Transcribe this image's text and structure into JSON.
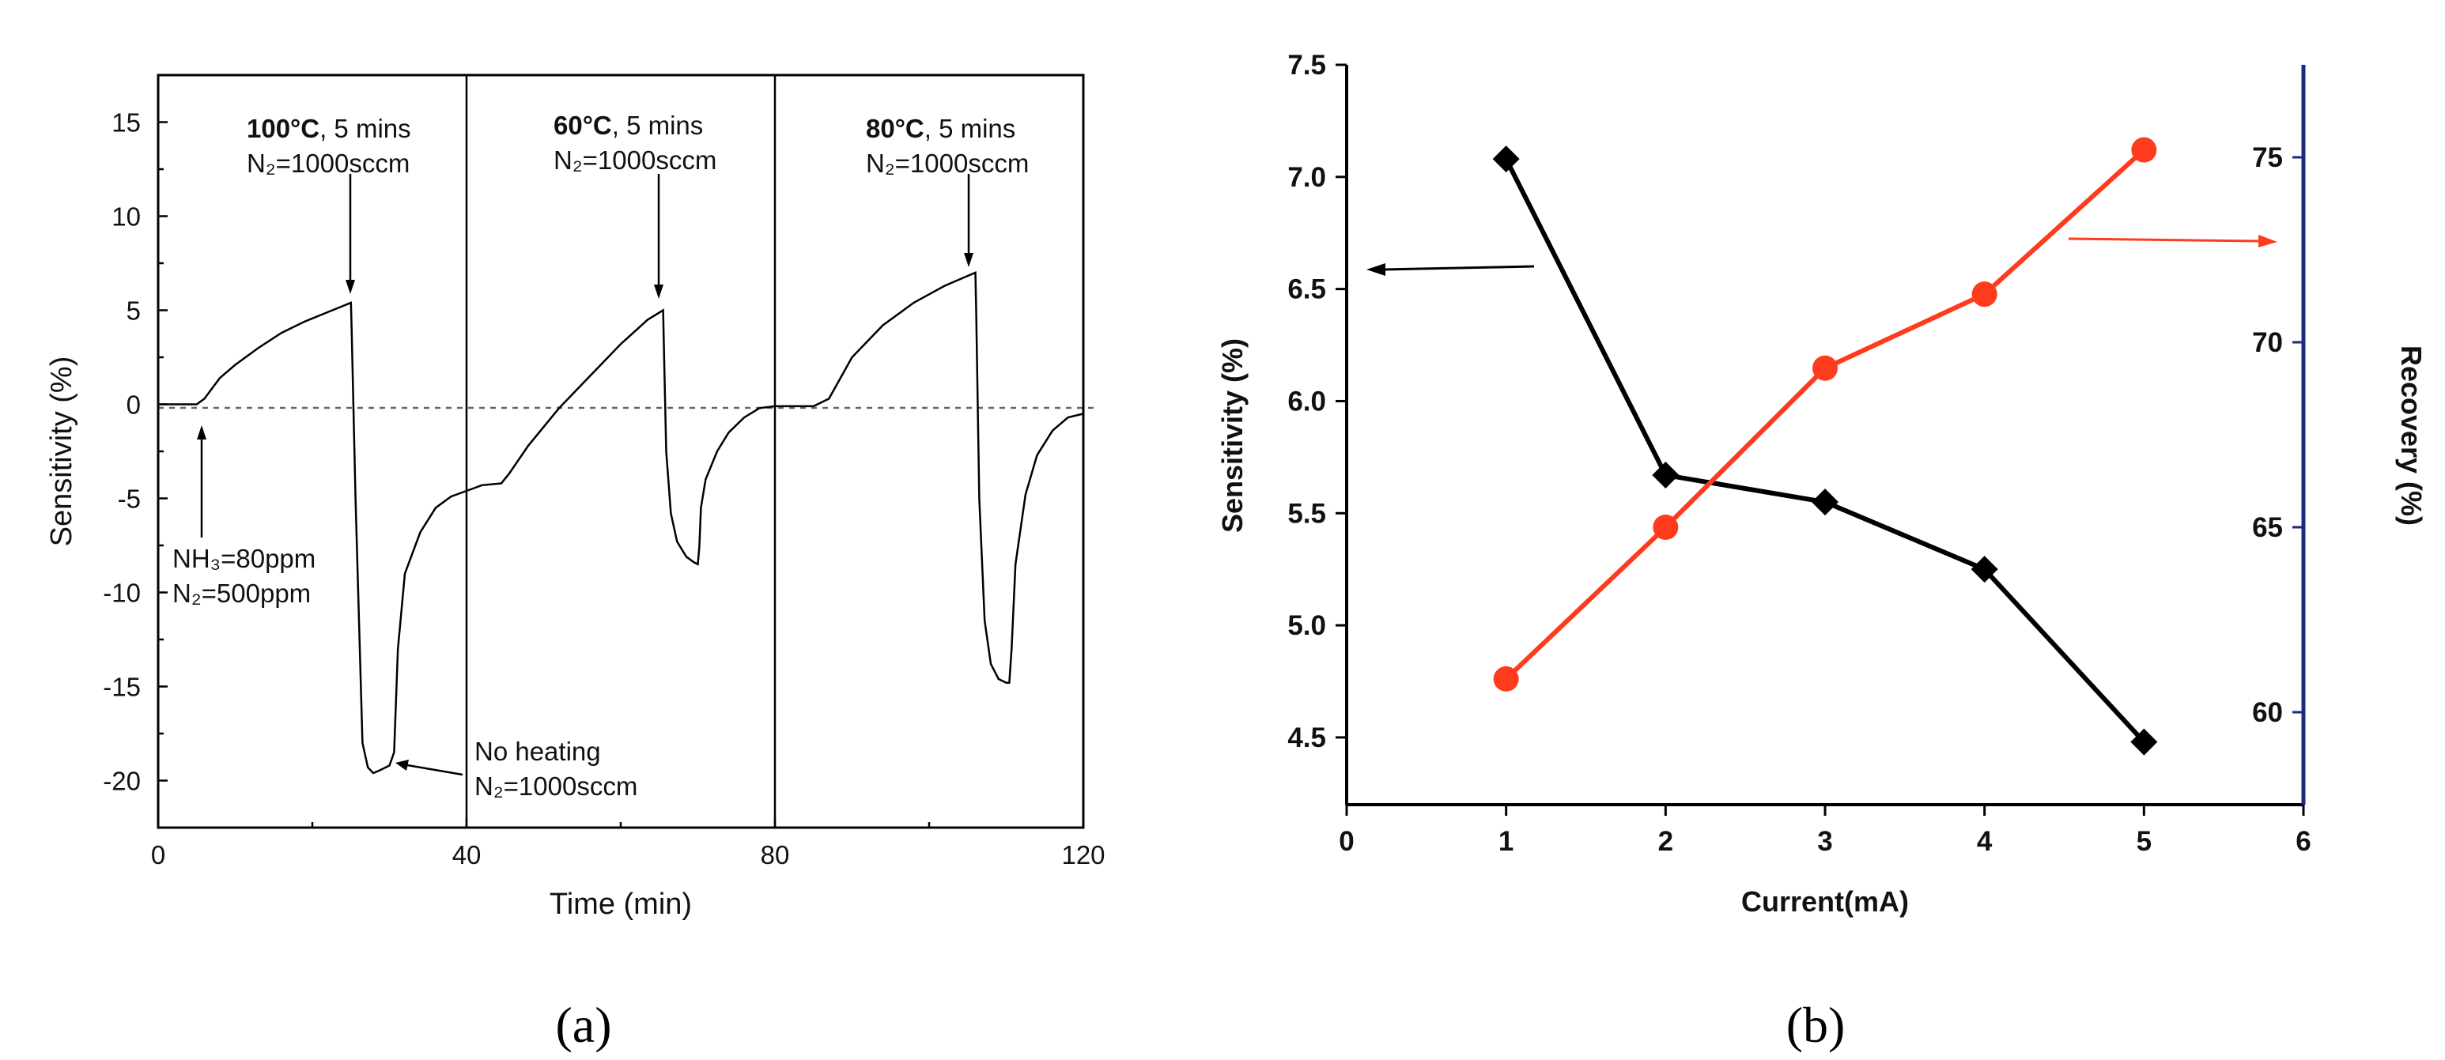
{
  "chart_data": [
    {
      "panel": "(a)",
      "type": "line",
      "xlabel": "Time (min)",
      "ylabel": "Sensitivity (%)",
      "xlim": [
        0,
        120
      ],
      "ylim": [
        -22.5,
        17.5
      ],
      "xticks": [
        "0",
        "40",
        "80",
        "120"
      ],
      "yticks": [
        "15",
        "10",
        "5",
        "0",
        "-5",
        "-10",
        "-15",
        "-20"
      ],
      "baseline": 0,
      "series": [
        {
          "name": "Sensitivity",
          "x": [
            0,
            3,
            5,
            6,
            8,
            10,
            13,
            16,
            19,
            22,
            25,
            25.1,
            25.6,
            26.5,
            27.2,
            27.9,
            28.5,
            29,
            30,
            30.6,
            31.1,
            32,
            34,
            36,
            38,
            40,
            42,
            44.5,
            45.5,
            48,
            52,
            56,
            60,
            63.5,
            65.5,
            65.6,
            65.9,
            66.5,
            67.3,
            68.5,
            69.5,
            70,
            70.2,
            70.4,
            71,
            72.5,
            74,
            76,
            78,
            80,
            83,
            85,
            87,
            90,
            94,
            98,
            102,
            106,
            106.1,
            106.5,
            107.2,
            108,
            109,
            110,
            110.4,
            110.7,
            111.2,
            112.5,
            114,
            116,
            118,
            120
          ],
          "y": [
            0,
            0,
            0,
            0.3,
            1.4,
            2.1,
            3,
            3.8,
            4.4,
            4.9,
            5.4,
            4,
            -5,
            -18,
            -19.3,
            -19.6,
            -19.5,
            -19.4,
            -19.2,
            -18.5,
            -13,
            -9,
            -6.8,
            -5.5,
            -4.9,
            -4.6,
            -4.3,
            -4.2,
            -3.7,
            -2.2,
            -0.2,
            1.5,
            3.2,
            4.5,
            5,
            3,
            -2.5,
            -5.8,
            -7.3,
            -8.1,
            -8.4,
            -8.5,
            -7.5,
            -5.5,
            -4,
            -2.5,
            -1.5,
            -0.7,
            -0.2,
            -0.1,
            -0.1,
            -0.1,
            0.3,
            2.5,
            4.2,
            5.4,
            6.3,
            7,
            5,
            -5,
            -11.5,
            -13.8,
            -14.6,
            -14.8,
            -14.8,
            -13,
            -8.5,
            -4.8,
            -2.7,
            -1.4,
            -0.7,
            -0.5
          ]
        }
      ],
      "annotations": [
        {
          "bold": "100°C",
          "rest": ", 5 mins",
          "gas": "N₂=1000sccm"
        },
        {
          "bold": "60°C",
          "rest": ", 5 mins",
          "gas": "N₂=1000sccm"
        },
        {
          "bold": "80°C",
          "rest": ", 5 mins",
          "gas": "N₂=1000sccm"
        },
        {
          "line1": "NH₃=80ppm",
          "line2": "N₂=500ppm"
        },
        {
          "line1": "No heating",
          "line2": "N₂=1000sccm"
        }
      ]
    },
    {
      "panel": "(b)",
      "type": "line",
      "xlabel": "Current(mA)",
      "ylabel_left": "Sensitivity (%)",
      "ylabel_right": "Recovery (%)",
      "xlim": [
        0,
        6
      ],
      "ylim_left": [
        4.2,
        7.5
      ],
      "ylim_right": [
        57.5,
        77.5
      ],
      "xticks": [
        "0",
        "1",
        "2",
        "3",
        "4",
        "5",
        "6"
      ],
      "yticks_left": [
        "7.5",
        "7.0",
        "6.5",
        "6.0",
        "5.5",
        "5.0",
        "4.5"
      ],
      "yticks_right": [
        "75",
        "70",
        "65",
        "60"
      ],
      "series": [
        {
          "name": "Sensitivity",
          "axis": "left",
          "marker": "diamond",
          "color": "#000000",
          "x": [
            1,
            2,
            3,
            4,
            5
          ],
          "y": [
            7.08,
            5.67,
            5.55,
            5.25,
            4.48
          ]
        },
        {
          "name": "Recovery",
          "axis": "right",
          "marker": "circle",
          "color": "#ff3b1d",
          "x": [
            1,
            2,
            3,
            4,
            5
          ],
          "y": [
            60.9,
            65.0,
            69.3,
            71.3,
            75.2
          ]
        }
      ]
    }
  ],
  "panel_labels": {
    "a": "(a)",
    "b": "(b)"
  },
  "colors": {
    "recovery": "#ff3b1d",
    "right_axis": "#1a2a80",
    "ink": "#000000"
  }
}
